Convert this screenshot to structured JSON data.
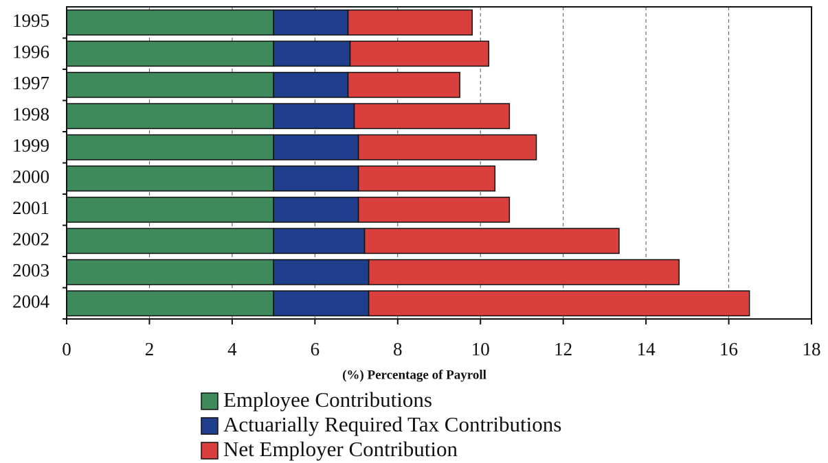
{
  "chart_data": {
    "type": "stacked-barh",
    "xlabel": "(%) Percentage of Payroll",
    "categories": [
      "1995",
      "1996",
      "1997",
      "1998",
      "1999",
      "2000",
      "2001",
      "2002",
      "2003",
      "2004"
    ],
    "series": [
      {
        "name": "Employee Contributions",
        "color": "#3f8a5c",
        "values": [
          5,
          5,
          5,
          5,
          5,
          5,
          5,
          5,
          5,
          5
        ]
      },
      {
        "name": "Actuarially Required Tax Contributions",
        "color": "#1f3f8c",
        "values": [
          1.8,
          1.85,
          1.8,
          1.95,
          2.05,
          2.05,
          2.05,
          2.2,
          2.3,
          2.3
        ]
      },
      {
        "name": "Net Employer Contribution",
        "color": "#d9403d",
        "values": [
          3,
          3.35,
          2.7,
          3.75,
          4.3,
          3.3,
          3.65,
          6.15,
          7.5,
          9.2
        ]
      }
    ],
    "xlim": [
      0,
      18
    ],
    "xticks": [
      0,
      2,
      4,
      6,
      8,
      10,
      12,
      14,
      16,
      18
    ],
    "grid": true
  }
}
